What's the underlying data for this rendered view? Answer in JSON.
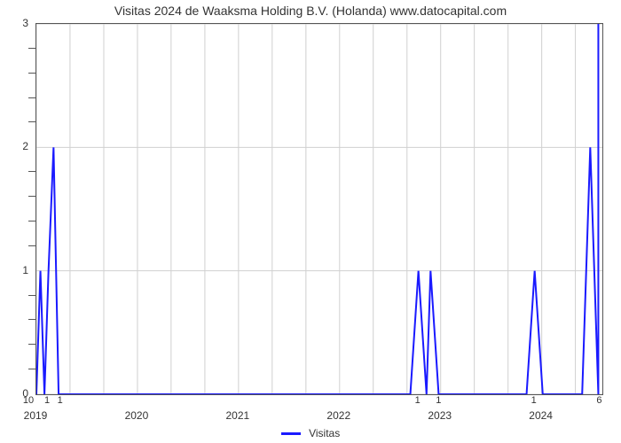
{
  "chart": {
    "type": "line",
    "title": "Visitas 2024 de Waaksma Holding B.V. (Holanda) www.datocapital.com",
    "title_fontsize": 14,
    "title_color": "#333333",
    "background_color": "#ffffff",
    "plot_border_color": "#555555",
    "grid_color": "#d0d0d0",
    "series_color": "#1a1aff",
    "series_width": 2,
    "x_axis": {
      "min": 2019,
      "max": 2024.6,
      "ticks": [
        2019,
        2020,
        2021,
        2022,
        2023,
        2024
      ],
      "tick_labels": [
        "2019",
        "2020",
        "2021",
        "2022",
        "2023",
        "2024"
      ],
      "grid_positions": [
        2019,
        2019.333,
        2019.667,
        2020,
        2020.333,
        2020.667,
        2021,
        2021.333,
        2021.667,
        2022,
        2022.333,
        2022.667,
        2023,
        2023.333,
        2023.667,
        2024,
        2024.333
      ],
      "tick_fontsize": 12
    },
    "y_axis": {
      "min": 0,
      "max": 3,
      "ticks": [
        0,
        1,
        2,
        3
      ],
      "tick_labels": [
        "0",
        "1",
        "2",
        "3"
      ],
      "minor_ticks": [
        0.2,
        0.4,
        0.6,
        0.8,
        1.2,
        1.4,
        1.6,
        1.8,
        2.2,
        2.4,
        2.6,
        2.8
      ],
      "grid_positions": [
        0,
        1,
        2,
        3
      ],
      "tick_fontsize": 12
    },
    "series": {
      "name": "Visitas",
      "points": [
        [
          2019.0,
          0
        ],
        [
          2019.04,
          1
        ],
        [
          2019.08,
          0
        ],
        [
          2019.12,
          1
        ],
        [
          2019.17,
          2
        ],
        [
          2019.22,
          0
        ],
        [
          2022.7,
          0
        ],
        [
          2022.78,
          1
        ],
        [
          2022.86,
          0
        ],
        [
          2022.9,
          1
        ],
        [
          2022.98,
          0
        ],
        [
          2023.85,
          0
        ],
        [
          2023.93,
          1
        ],
        [
          2024.01,
          0
        ],
        [
          2024.4,
          0
        ],
        [
          2024.48,
          2
        ],
        [
          2024.56,
          0
        ],
        [
          2024.56,
          6
        ]
      ]
    },
    "data_labels": [
      {
        "x": 2019.0,
        "y": 0,
        "text": "10",
        "dx": -8
      },
      {
        "x": 2019.08,
        "y": 0,
        "text": "1",
        "dx": 4
      },
      {
        "x": 2019.12,
        "y": 0,
        "text": "1",
        "dx": 14
      },
      {
        "x": 2022.78,
        "y": 0,
        "text": "1",
        "dx": 0
      },
      {
        "x": 2022.9,
        "y": 0,
        "text": "1",
        "dx": 10
      },
      {
        "x": 2023.93,
        "y": 0,
        "text": "1",
        "dx": 0
      },
      {
        "x": 2024.56,
        "y": 0,
        "text": "6",
        "dx": 2
      }
    ],
    "legend": {
      "label": "Visitas",
      "fontsize": 12
    }
  }
}
